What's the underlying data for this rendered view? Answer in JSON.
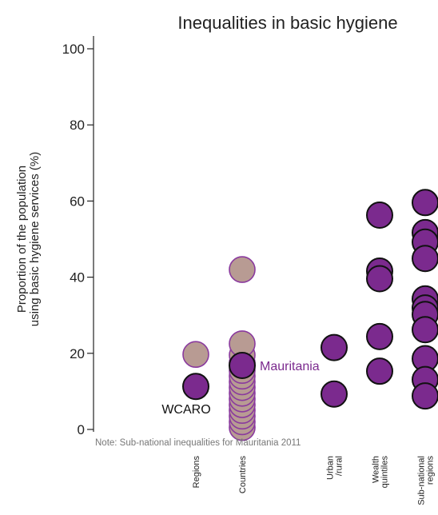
{
  "chart_data": {
    "type": "scatter",
    "title": "Inequalities in basic hygiene",
    "ylabel_lines": [
      "Proportion of the population",
      "using basic hygiene services (%)"
    ],
    "ylim": [
      0,
      100
    ],
    "yticks": [
      0,
      20,
      40,
      60,
      80,
      100
    ],
    "grid": false,
    "note": "Note: Sub-national inequalities for Mauritania  2011",
    "categories": [
      {
        "key": "regions",
        "lines": [
          "Regions"
        ]
      },
      {
        "key": "countries",
        "lines": [
          "Countries"
        ]
      },
      {
        "key": "urban_rural",
        "lines": [
          "Urban",
          "/rural"
        ]
      },
      {
        "key": "wealth_quintiles",
        "lines": [
          "Wealth",
          "quintiles"
        ]
      },
      {
        "key": "subnational_regions",
        "lines": [
          "Sub-national",
          "regions"
        ]
      }
    ],
    "colors": {
      "title": "#7b2a8e",
      "highlight_fill": "#7b2a8e",
      "muted_fill": "#b89b93",
      "highlight_stroke": "#111111",
      "muted_stroke": "#8a3a9e",
      "label": "#7b2a8e"
    },
    "series": [
      {
        "category": "regions",
        "style": "muted",
        "values": [
          19.7
        ]
      },
      {
        "category": "regions",
        "style": "highlight",
        "values": [
          11.3
        ],
        "label": "WCARO"
      },
      {
        "category": "countries",
        "style": "muted",
        "values": [
          0.5,
          2,
          3.5,
          5,
          6.5,
          8,
          9.5,
          11,
          12.5,
          14,
          15.5,
          17.5,
          19.5,
          22.5,
          42
        ]
      },
      {
        "category": "countries",
        "style": "highlight",
        "values": [
          16.8
        ],
        "label": "Mauritania"
      },
      {
        "category": "urban_rural",
        "style": "highlight",
        "values": [
          21.5,
          9.3
        ]
      },
      {
        "category": "wealth_quintiles",
        "style": "highlight",
        "values": [
          56.3,
          41.6,
          39.6,
          24.4,
          15.3
        ]
      },
      {
        "category": "subnational_regions",
        "style": "highlight",
        "values": [
          59.6,
          51.7,
          49.2,
          44.9,
          34.3,
          31.9,
          30.2,
          26.2,
          18.6,
          13.1,
          8.8
        ]
      }
    ]
  }
}
